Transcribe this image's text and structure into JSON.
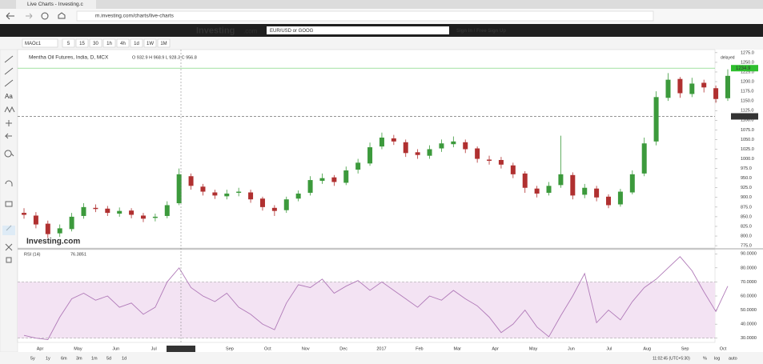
{
  "browser": {
    "tab_title": "Live Charts - Investing.c",
    "url": "m.investing.com/charts/live-charts"
  },
  "site": {
    "logo": "Investing",
    "logo_suffix": ".com",
    "search_placeholder": "EUR/USD or GOOG",
    "sign_in": "Sign In / Free Sign Up"
  },
  "toolbar": {
    "symbol": "MAOc1",
    "intervals": [
      "5",
      "15",
      "30",
      "1h",
      "4h",
      "1d",
      "1W",
      "1M"
    ]
  },
  "left_tools": {
    "text_tool": "Aa"
  },
  "chart_data": {
    "type": "candlestick",
    "title": "Mentha Oil Futures, India, D, MCX",
    "ohlc_readout": "O 932.9 H 968.9 L 928.3 C 956.8",
    "status": "delayed",
    "watermark": "Investing.com",
    "categories": [
      "Apr",
      "May",
      "Jun",
      "Jul",
      null,
      "Sep",
      "Oct",
      "Nov",
      "Dec",
      "2017",
      "Feb",
      "Mar",
      "Apr",
      "May",
      "Jun",
      "Jul",
      "Aug",
      "Sep",
      "Oct"
    ],
    "crosshair_label": "2016-07-22",
    "colors": {
      "up": "#3c9a3c",
      "down": "#b03030",
      "rsi": "#b07ab8"
    },
    "open": [
      860,
      853,
      832,
      807,
      818,
      852,
      873,
      871,
      858,
      866,
      853,
      847,
      852,
      885,
      955,
      928,
      913,
      903,
      912,
      913,
      897,
      873,
      867,
      897,
      912,
      943,
      952,
      938,
      972,
      988,
      1032,
      1053,
      1043,
      1017,
      1008,
      1027,
      1038,
      1043,
      1027,
      998,
      997,
      983,
      962,
      923,
      912,
      932,
      958,
      907,
      923,
      902,
      882,
      913,
      962,
      1045,
      1158,
      1207,
      1168,
      1197,
      1183,
      1157
    ],
    "high": [
      872,
      862,
      840,
      830,
      860,
      885,
      882,
      878,
      874,
      872,
      860,
      858,
      890,
      975,
      962,
      935,
      920,
      920,
      925,
      920,
      902,
      880,
      902,
      918,
      955,
      962,
      958,
      980,
      1000,
      1042,
      1068,
      1062,
      1050,
      1025,
      1035,
      1050,
      1058,
      1050,
      1032,
      1008,
      1005,
      990,
      968,
      930,
      940,
      1060,
      965,
      935,
      930,
      908,
      922,
      970,
      1055,
      1175,
      1222,
      1212,
      1210,
      1205,
      1190,
      1232
    ],
    "low": [
      845,
      820,
      795,
      798,
      812,
      845,
      862,
      852,
      850,
      846,
      836,
      838,
      846,
      880,
      920,
      905,
      896,
      895,
      903,
      886,
      866,
      852,
      860,
      890,
      905,
      935,
      930,
      932,
      962,
      982,
      1025,
      1036,
      1005,
      1000,
      1000,
      1018,
      1030,
      1015,
      990,
      985,
      975,
      950,
      912,
      900,
      905,
      925,
      895,
      898,
      890,
      872,
      876,
      908,
      955,
      1035,
      1150,
      1158,
      1160,
      1172,
      1145,
      1150
    ],
    "close": [
      855,
      830,
      805,
      820,
      850,
      875,
      870,
      860,
      865,
      855,
      845,
      850,
      880,
      960,
      930,
      915,
      905,
      910,
      915,
      895,
      875,
      865,
      895,
      910,
      945,
      950,
      940,
      970,
      990,
      1030,
      1055,
      1045,
      1015,
      1010,
      1025,
      1040,
      1045,
      1025,
      1000,
      995,
      985,
      960,
      925,
      910,
      930,
      960,
      905,
      925,
      900,
      880,
      915,
      960,
      1040,
      1160,
      1205,
      1170,
      1195,
      1185,
      1155,
      1215
    ],
    "ylim": [
      769,
      1283
    ],
    "yticks": [
      {
        "value": 775,
        "label": "775.0"
      },
      {
        "value": 800,
        "label": "800.0"
      },
      {
        "value": 825,
        "label": "825.0"
      },
      {
        "value": 850,
        "label": "850.0"
      },
      {
        "value": 875,
        "label": "875.0"
      },
      {
        "value": 900,
        "label": "900.0"
      },
      {
        "value": 925,
        "label": "925.0"
      },
      {
        "value": 950,
        "label": "950.0"
      },
      {
        "value": 975,
        "label": "975.0"
      },
      {
        "value": 1000,
        "label": "1000.0"
      },
      {
        "value": 1025,
        "label": "1025.0"
      },
      {
        "value": 1050,
        "label": "1050.0"
      },
      {
        "value": 1075,
        "label": "1075.0"
      },
      {
        "value": 1100,
        "label": "1100.0"
      },
      {
        "value": 1125,
        "label": "1125.0"
      },
      {
        "value": 1150,
        "label": "1150.0"
      },
      {
        "value": 1175,
        "label": "1175.0"
      },
      {
        "value": 1200,
        "label": "1200.0"
      },
      {
        "value": 1225,
        "label": "1225.0"
      },
      {
        "value": 1250,
        "label": "1250.0"
      },
      {
        "value": 1275,
        "label": "1275.0"
      }
    ],
    "last_price": {
      "value": 1234.9,
      "label": "1234.9"
    },
    "level_line": {
      "value": 1110,
      "label": "1110.0"
    },
    "rsi": {
      "label": "RSI (14)",
      "readout": "76.3851",
      "values": [
        32,
        30,
        29,
        45,
        58,
        62,
        57,
        60,
        52,
        55,
        47,
        52,
        70,
        80,
        66,
        60,
        56,
        62,
        52,
        47,
        40,
        36,
        55,
        68,
        66,
        72,
        62,
        67,
        71,
        64,
        70,
        64,
        58,
        52,
        60,
        57,
        64,
        58,
        53,
        45,
        34,
        40,
        50,
        38,
        31,
        46,
        60,
        76,
        41,
        50,
        43,
        56,
        66,
        72,
        80,
        88,
        78,
        63,
        49,
        67
      ],
      "ylim": [
        27,
        93
      ],
      "band": [
        30,
        70
      ],
      "yticks": [
        {
          "value": 30,
          "label": "30.0000"
        },
        {
          "value": 40,
          "label": "40.0000"
        },
        {
          "value": 50,
          "label": "50.0000"
        },
        {
          "value": 60,
          "label": "60.0000"
        },
        {
          "value": 70,
          "label": "70.0000"
        },
        {
          "value": 80,
          "label": "80.0000"
        },
        {
          "value": 90,
          "label": "90.0000"
        }
      ]
    },
    "ranges": [
      "5y",
      "1y",
      "6m",
      "3m",
      "1m",
      "5d",
      "1d"
    ],
    "footer": {
      "clock": "11:02:45 (UTC+5:30)",
      "percent": "%",
      "log": "log",
      "auto": "auto"
    }
  }
}
